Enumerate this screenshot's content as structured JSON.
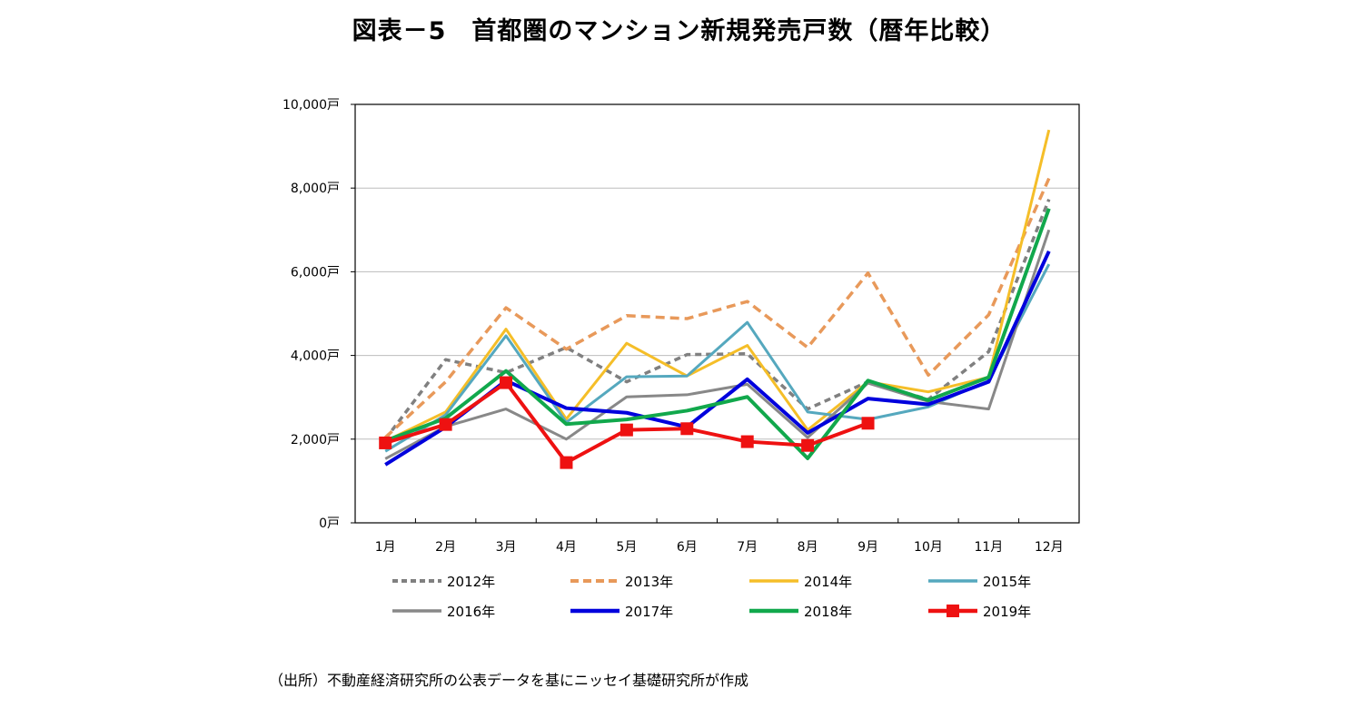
{
  "chart_data": {
    "type": "line",
    "title": "図表－5　首都圏のマンション新規発売戸数（暦年比較）",
    "xlabel": "",
    "ylabel": "",
    "categories": [
      "1月",
      "2月",
      "3月",
      "4月",
      "5月",
      "6月",
      "7月",
      "8月",
      "9月",
      "10月",
      "11月",
      "12月"
    ],
    "ylim": [
      0,
      10000
    ],
    "yticks": [
      0,
      2000,
      4000,
      6000,
      8000,
      10000
    ],
    "ytick_labels": [
      "0戸",
      "2,000戸",
      "4,000戸",
      "6,000戸",
      "8,000戸",
      "10,000戸"
    ],
    "grid": true,
    "legend_position": "bottom",
    "series": [
      {
        "name": "2012年",
        "color": "#808080",
        "style": "dotted",
        "values": [
          2000,
          3900,
          3590,
          4190,
          3370,
          4020,
          4040,
          2720,
          3370,
          2950,
          4090,
          7730
        ]
      },
      {
        "name": "2013年",
        "color": "#E8995A",
        "style": "dashed",
        "values": [
          2040,
          3370,
          5140,
          4150,
          4950,
          4880,
          5290,
          4190,
          5970,
          3530,
          4970,
          8230
        ]
      },
      {
        "name": "2014年",
        "color": "#F5BE28",
        "style": "solid",
        "values": [
          1950,
          2650,
          4630,
          2480,
          4290,
          3510,
          4240,
          2220,
          3370,
          3130,
          3480,
          9390
        ]
      },
      {
        "name": "2015年",
        "color": "#55A8BE",
        "style": "solid",
        "values": [
          1710,
          2580,
          4470,
          2400,
          3490,
          3510,
          4790,
          2650,
          2470,
          2770,
          3400,
          6180
        ]
      },
      {
        "name": "2016年",
        "color": "#888888",
        "style": "solid",
        "values": [
          1530,
          2300,
          2720,
          2000,
          3010,
          3060,
          3310,
          2040,
          3340,
          2900,
          2720,
          7000
        ]
      },
      {
        "name": "2017年",
        "color": "#0000DD",
        "style": "solid-thick",
        "values": [
          1390,
          2290,
          3400,
          2740,
          2630,
          2290,
          3430,
          2150,
          2970,
          2830,
          3370,
          6490
        ]
      },
      {
        "name": "2018年",
        "color": "#11A84C",
        "style": "solid-thick",
        "values": [
          1960,
          2500,
          3630,
          2360,
          2470,
          2680,
          3010,
          1540,
          3400,
          2930,
          3480,
          7510
        ]
      },
      {
        "name": "2019年",
        "color": "#EE1111",
        "style": "solid-thick-marker",
        "values": [
          1910,
          2350,
          3350,
          1440,
          2220,
          2250,
          1940,
          1850,
          2380
        ]
      }
    ]
  },
  "source_note": "（出所）不動産経済研究所の公表データを基にニッセイ基礎研究所が作成"
}
